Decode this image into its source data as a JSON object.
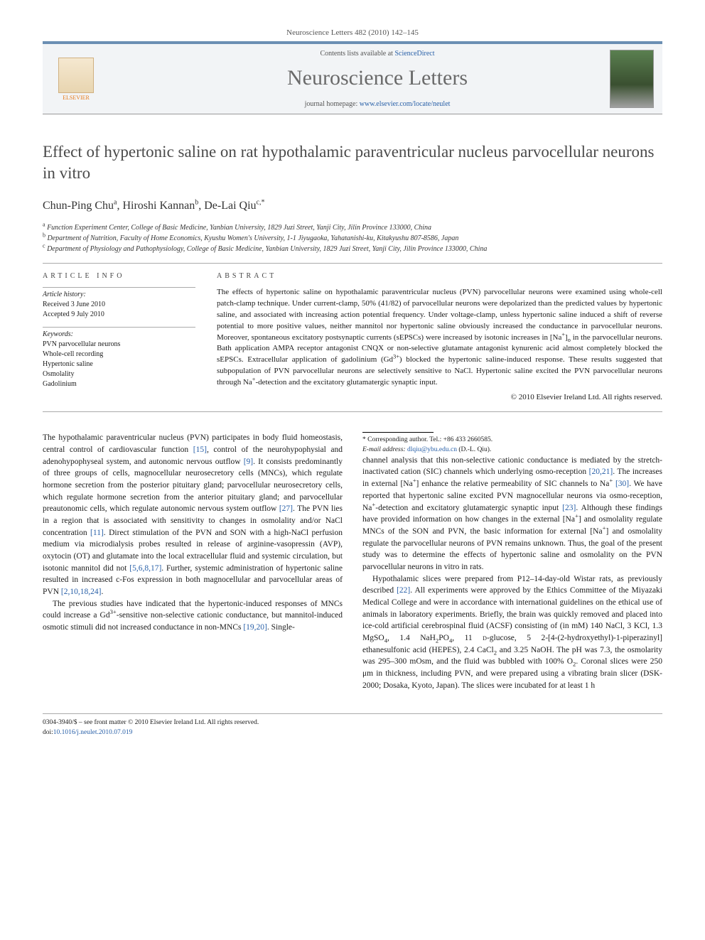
{
  "header": {
    "citation": "Neuroscience Letters 482 (2010) 142–145",
    "contents_prefix": "Contents lists available at ",
    "contents_link": "ScienceDirect",
    "journal_name": "Neuroscience Letters",
    "homepage_prefix": "journal homepage: ",
    "homepage_url": "www.elsevier.com/locate/neulet",
    "publisher_logo_label": "ELSEVIER"
  },
  "title": "Effect of hypertonic saline on rat hypothalamic paraventricular nucleus parvocellular neurons in vitro",
  "authors_html": "Chun-Ping Chu<sup>a</sup>, Hiroshi Kannan<sup>b</sup>, De-Lai Qiu<sup>c,*</sup>",
  "affiliations": [
    {
      "sup": "a",
      "text": "Function Experiment Center, College of Basic Medicine, Yanbian University, 1829 Juzi Street, Yanji City, Jilin Province 133000, China"
    },
    {
      "sup": "b",
      "text": "Department of Nutrition, Faculty of Home Economics, Kyushu Women's University, 1-1 Jiyugaoka, Yahatanishi-ku, Kitakyushu 807-8586, Japan"
    },
    {
      "sup": "c",
      "text": "Department of Physiology and Pathophysiology, College of Basic Medicine, Yanbian University, 1829 Juzi Street, Yanji City, Jilin Province 133000, China"
    }
  ],
  "article_info": {
    "heading": "article info",
    "history_label": "Article history:",
    "received": "Received 3 June 2010",
    "accepted": "Accepted 9 July 2010",
    "keywords_label": "Keywords:",
    "keywords": [
      "PVN parvocellular neurons",
      "Whole-cell recording",
      "Hypertonic saline",
      "Osmolality",
      "Gadolinium"
    ]
  },
  "abstract": {
    "heading": "abstract",
    "text": "The effects of hypertonic saline on hypothalamic paraventricular nucleus (PVN) parvocellular neurons were examined using whole-cell patch-clamp technique. Under current-clamp, 50% (41/82) of parvocellular neurons were depolarized than the predicted values by hypertonic saline, and associated with increasing action potential frequency. Under voltage-clamp, unless hypertonic saline induced a shift of reverse potential to more positive values, neither mannitol nor hypertonic saline obviously increased the conductance in parvocellular neurons. Moreover, spontaneous excitatory postsynaptic currents (sEPSCs) were increased by isotonic increases in [Na+]o in the parvocellular neurons. Bath application AMPA receptor antagonist CNQX or non-selective glutamate antagonist kynurenic acid almost completely blocked the sEPSCs. Extracellular application of gadolinium (Gd3+) blocked the hypertonic saline-induced response. These results suggested that subpopulation of PVN parvocellular neurons are selectively sensitive to NaCl. Hypertonic saline excited the PVN parvocellular neurons through Na+-detection and the excitatory glutamatergic synaptic input.",
    "copyright": "© 2010 Elsevier Ireland Ltd. All rights reserved."
  },
  "body": {
    "p1": "The hypothalamic paraventricular nucleus (PVN) participates in body fluid homeostasis, central control of cardiovascular function [15], control of the neurohypophysial and adenohypophyseal system, and autonomic nervous outflow [9]. It consists predominantly of three groups of cells, magnocellular neurosecretory cells (MNCs), which regulate hormone secretion from the posterior pituitary gland; parvocellular neurosecretory cells, which regulate hormone secretion from the anterior pituitary gland; and parvocellular preautonomic cells, which regulate autonomic nervous system outflow [27]. The PVN lies in a region that is associated with sensitivity to changes in osmolality and/or NaCl concentration [11]. Direct stimulation of the PVN and SON with a high-NaCl perfusion medium via microdialysis probes resulted in release of arginine-vasopressin (AVP), oxytocin (OT) and glutamate into the local extracellular fluid and systemic circulation, but isotonic mannitol did not [5,6,8,17]. Further, systemic administration of hypertonic saline resulted in increased c-Fos expression in both magnocellular and parvocellular areas of PVN [2,10,18,24].",
    "p2": "The previous studies have indicated that the hypertonic-induced responses of MNCs could increase a Gd3+-sensitive non-selective cationic conductance, but mannitol-induced osmotic stimuli did not increased conductance in non-MNCs [19,20]. Single-",
    "p3": "channel analysis that this non-selective cationic conductance is mediated by the stretch-inactivated cation (SIC) channels which underlying osmo-reception [20,21]. The increases in external [Na+] enhance the relative permeability of SIC channels to Na+ [30]. We have reported that hypertonic saline excited PVN magnocellular neurons via osmo-reception, Na+-detection and excitatory glutamatergic synaptic input [23]. Although these findings have provided information on how changes in the external [Na+] and osmolality regulate MNCs of the SON and PVN, the basic information for external [Na+] and osmolality regulate the parvocellular neurons of PVN remains unknown. Thus, the goal of the present study was to determine the effects of hypertonic saline and osmolality on the PVN parvocellular neurons in vitro in rats.",
    "p4": "Hypothalamic slices were prepared from P12–14-day-old Wistar rats, as previously described [22]. All experiments were approved by the Ethics Committee of the Miyazaki Medical College and were in accordance with international guidelines on the ethical use of animals in laboratory experiments. Briefly, the brain was quickly removed and placed into ice-cold artificial cerebrospinal fluid (ACSF) consisting of (in mM) 140 NaCl, 3 KCl, 1.3 MgSO4, 1.4 NaH2PO4, 11 d-glucose, 5 2-[4-(2-hydroxyethyl)-1-piperazinyl] ethanesulfonic acid (HEPES), 2.4 CaCl2 and 3.25 NaOH. The pH was 7.3, the osmolarity was 295–300 mOsm, and the fluid was bubbled with 100% O2. Coronal slices were 250 μm in thickness, including PVN, and were prepared using a vibrating brain slicer (DSK-2000; Dosaka, Kyoto, Japan). The slices were incubated for at least 1 h"
  },
  "footnotes": {
    "corr": "* Corresponding author. Tel.: +86 433 2660585.",
    "email_label": "E-mail address: ",
    "email": "dlqiu@ybu.edu.cn",
    "email_suffix": " (D.-L. Qiu)."
  },
  "bottom": {
    "line1": "0304-3940/$ – see front matter © 2010 Elsevier Ireland Ltd. All rights reserved.",
    "doi_label": "doi:",
    "doi": "10.1016/j.neulet.2010.07.019"
  },
  "colors": {
    "link": "#2960a8",
    "header_accent": "#6b8fb3",
    "elsevier_orange": "#e67817"
  }
}
